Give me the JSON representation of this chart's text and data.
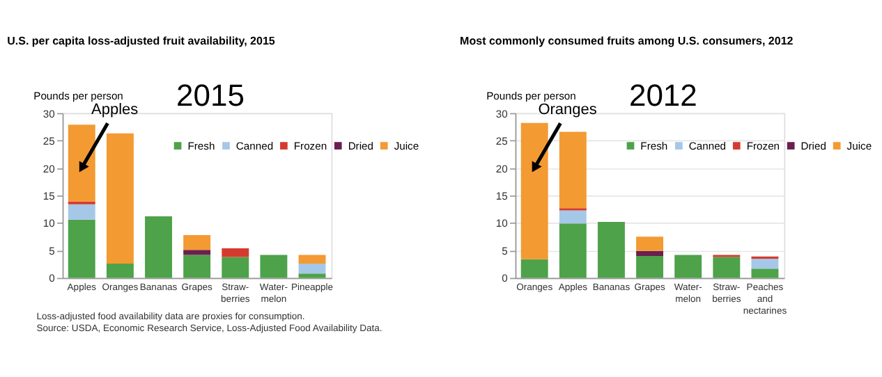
{
  "chart_data": [
    {
      "type": "bar",
      "stacked": true,
      "title": "U.S. per capita loss-adjusted fruit availability, 2015",
      "ylabel": "Pounds per person",
      "categories": [
        "Apples",
        "Oranges",
        "Bananas",
        "Grapes",
        "Straw-\nberries",
        "Water-\nmelon",
        "Pineapple"
      ],
      "series": [
        {
          "name": "Fresh",
          "color": "#4ea24a",
          "values": [
            10.6,
            2.6,
            11.2,
            4.2,
            3.8,
            4.2,
            0.8
          ]
        },
        {
          "name": "Canned",
          "color": "#a6c8e8",
          "values": [
            2.8,
            0,
            0,
            0,
            0,
            0,
            1.8
          ]
        },
        {
          "name": "Frozen",
          "color": "#d63a2f",
          "values": [
            0.5,
            0,
            0,
            0,
            1.6,
            0,
            0
          ]
        },
        {
          "name": "Dried",
          "color": "#6b1f4f",
          "values": [
            0,
            0,
            0,
            0.9,
            0,
            0,
            0
          ]
        },
        {
          "name": "Juice",
          "color": "#f39a32",
          "values": [
            14.0,
            23.7,
            0,
            2.7,
            0,
            0,
            1.6
          ]
        }
      ],
      "ylim": [
        0,
        30
      ],
      "yticks": [
        0,
        5,
        10,
        15,
        20,
        25,
        30
      ],
      "grid": false,
      "legend": "top right",
      "annotations": [
        "2015",
        {
          "text": "Apples",
          "x": "Apples",
          "y": 20
        },
        "Loss-adjusted food availability data are proxies for consumption.",
        "Source: USDA, Economic Research Service, Loss-Adjusted Food Availability Data."
      ]
    },
    {
      "type": "bar",
      "stacked": true,
      "title": "Most commonly consumed fruits among U.S. consumers, 2012",
      "ylabel": "Pounds per person",
      "categories": [
        "Oranges",
        "Apples",
        "Bananas",
        "Grapes",
        "Water-\nmelon",
        "Straw-\nberries",
        "Peaches\nand\nnectarines"
      ],
      "series": [
        {
          "name": "Fresh",
          "color": "#4ea24a",
          "values": [
            3.4,
            9.9,
            10.2,
            4.0,
            4.2,
            3.8,
            1.7
          ]
        },
        {
          "name": "Canned",
          "color": "#a6c8e8",
          "values": [
            0,
            2.4,
            0,
            0,
            0,
            0,
            1.8
          ]
        },
        {
          "name": "Frozen",
          "color": "#d63a2f",
          "values": [
            0,
            0.4,
            0,
            0,
            0,
            0.4,
            0.4
          ]
        },
        {
          "name": "Dried",
          "color": "#6b1f4f",
          "values": [
            0,
            0,
            0,
            0.9,
            0,
            0,
            0
          ]
        },
        {
          "name": "Juice",
          "color": "#f39a32",
          "values": [
            24.8,
            13.9,
            0,
            2.6,
            0,
            0,
            0
          ]
        }
      ],
      "ylim": [
        0,
        30
      ],
      "yticks": [
        0,
        5,
        10,
        15,
        20,
        25,
        30
      ],
      "grid": "y",
      "legend": "top right",
      "annotations": [
        "2012",
        {
          "text": "Oranges",
          "x": "Oranges",
          "y": 20
        }
      ]
    }
  ]
}
